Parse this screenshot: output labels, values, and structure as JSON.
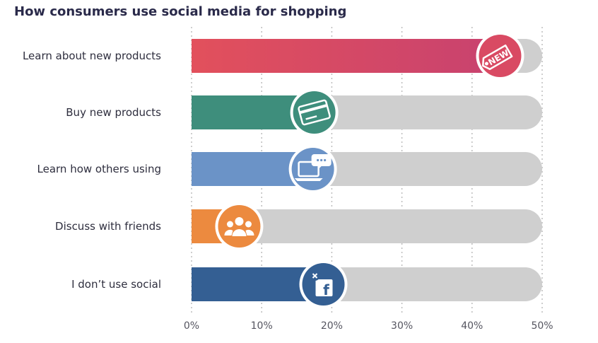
{
  "title": "How consumers use social media for shopping",
  "chart_data": {
    "type": "bar",
    "orientation": "horizontal",
    "title": "How consumers use social media for shopping",
    "categories": [
      "Learn about new products",
      "Buy new products",
      "Learn how others using",
      "Discuss with friends",
      "I don’t use social"
    ],
    "values": [
      44,
      17.5,
      17.3,
      6.8,
      18.8
    ],
    "xlim": [
      0,
      50
    ],
    "ticks": [
      0,
      10,
      20,
      30,
      40,
      50
    ],
    "tick_labels": [
      "0%",
      "10%",
      "20%",
      "30%",
      "40%",
      "50%"
    ],
    "grid": "vertical dotted",
    "colors": [
      "#d94a63",
      "#3e8e7c",
      "#6b93c7",
      "#ec8a3f",
      "#345f93"
    ],
    "track_color": "#cfcfcf",
    "icons": [
      "new-tag-icon",
      "credit-card-icon",
      "laptop-chat-icon",
      "group-people-icon",
      "facebook-icon"
    ]
  }
}
